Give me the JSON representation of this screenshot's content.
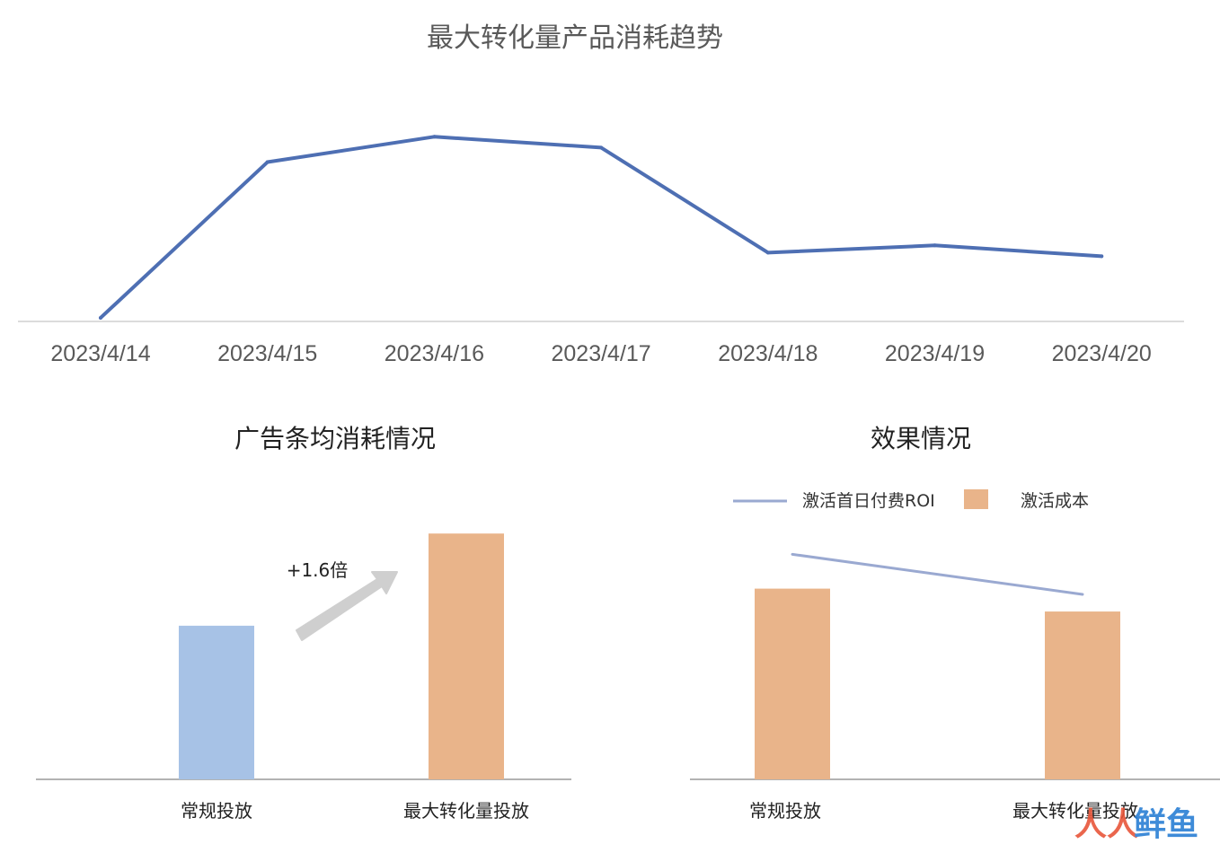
{
  "chart_data": [
    {
      "type": "line",
      "title": "最大转化量产品消耗趋势",
      "x": [
        "2023/4/14",
        "2023/4/15",
        "2023/4/16",
        "2023/4/17",
        "2023/4/18",
        "2023/4/19",
        "2023/4/20"
      ],
      "values": [
        2,
        88,
        102,
        96,
        38,
        42,
        36
      ],
      "ylim": [
        0,
        120
      ],
      "y_axis_labels": false,
      "grid": false,
      "color": "#4e6fb3"
    },
    {
      "type": "bar",
      "title": "广告条均消耗情况",
      "categories": [
        "常规投放",
        "最大转化量投放"
      ],
      "values": [
        1.0,
        1.6
      ],
      "colors": [
        "#a7c2e6",
        "#e9b48a"
      ],
      "ylim": [
        0,
        1.8
      ],
      "annotation": "+1.6倍",
      "annotation_arrow_color": "#cfcfcf"
    },
    {
      "type": "bar",
      "title": "效果情况",
      "categories": [
        "常规投放",
        "最大转化量投放"
      ],
      "series": [
        {
          "name": "激活成本",
          "type": "bar",
          "values": [
            1.0,
            0.88
          ],
          "color": "#e9b48a"
        },
        {
          "name": "激活首日付费ROI",
          "type": "line",
          "values": [
            1.18,
            0.97
          ],
          "color": "#9aa9d1"
        }
      ],
      "ylim": [
        0,
        1.45
      ],
      "legend": "top"
    }
  ],
  "watermark": {
    "text_1": "人人",
    "text_2": "鲜鱼",
    "color_1": "#e8563a",
    "color_2": "#2a7fd4"
  }
}
